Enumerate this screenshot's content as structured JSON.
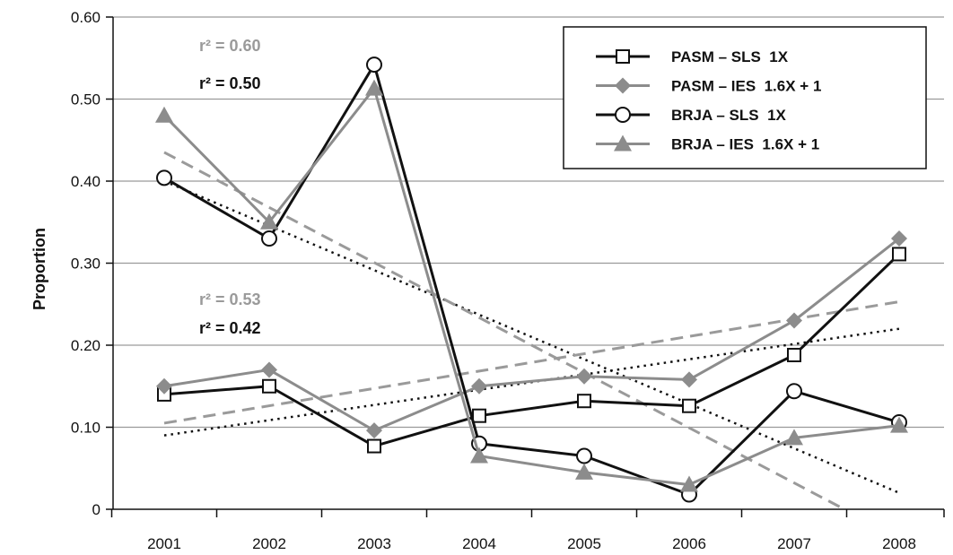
{
  "chart_data": {
    "type": "line",
    "title": "",
    "xlabel": "",
    "ylabel": "Proportion",
    "categories": [
      "2001",
      "2002",
      "2003",
      "2004",
      "2005",
      "2006",
      "2007",
      "2008"
    ],
    "ylim": [
      0,
      0.6
    ],
    "yticks": [
      0,
      0.1,
      0.2,
      0.3,
      0.4,
      0.5,
      0.6
    ],
    "ytick_labels": [
      "0",
      "0.10",
      "0.20",
      "0.30",
      "0.40",
      "0.50",
      "0.60"
    ],
    "grid": "horizontal",
    "legend_position": "top-right",
    "series": [
      {
        "name": "PASM – SLS  1X",
        "marker": "square",
        "color": "#111111",
        "values": [
          0.14,
          0.15,
          0.077,
          0.114,
          0.132,
          0.126,
          0.188,
          0.311
        ]
      },
      {
        "name": "PASM – IES  1.6X + 1",
        "marker": "diamond",
        "color": "#8c8c8c",
        "values": [
          0.15,
          0.17,
          0.096,
          0.15,
          0.162,
          0.158,
          0.23,
          0.33
        ]
      },
      {
        "name": "BRJA – SLS  1X",
        "marker": "circle",
        "color": "#111111",
        "values": [
          0.404,
          0.33,
          0.542,
          0.08,
          0.065,
          0.018,
          0.144,
          0.106
        ]
      },
      {
        "name": "BRJA – IES  1.6X + 1",
        "marker": "triangle",
        "color": "#8c8c8c",
        "values": [
          0.48,
          0.35,
          0.513,
          0.065,
          0.045,
          0.03,
          0.087,
          0.102
        ]
      }
    ],
    "trendlines": [
      {
        "style": "dotted",
        "color": "#111111",
        "from": [
          0.4,
          0.02
        ]
      },
      {
        "style": "dashed",
        "color": "#9a9a9a",
        "from": [
          0.435,
          -0.035
        ]
      },
      {
        "style": "dotted",
        "color": "#111111",
        "from": [
          0.09,
          0.22
        ]
      },
      {
        "style": "dashed",
        "color": "#9a9a9a",
        "from": [
          0.105,
          0.253
        ]
      }
    ],
    "annotations": [
      {
        "id": "upper_gray",
        "text": "r² = 0.60",
        "color": "#9a9a9a"
      },
      {
        "id": "upper_black",
        "text": "r² = 0.50",
        "color": "#111111"
      },
      {
        "id": "lower_gray",
        "text": "r² = 0.53",
        "color": "#9a9a9a"
      },
      {
        "id": "lower_black",
        "text": "r² = 0.42",
        "color": "#111111"
      }
    ]
  }
}
